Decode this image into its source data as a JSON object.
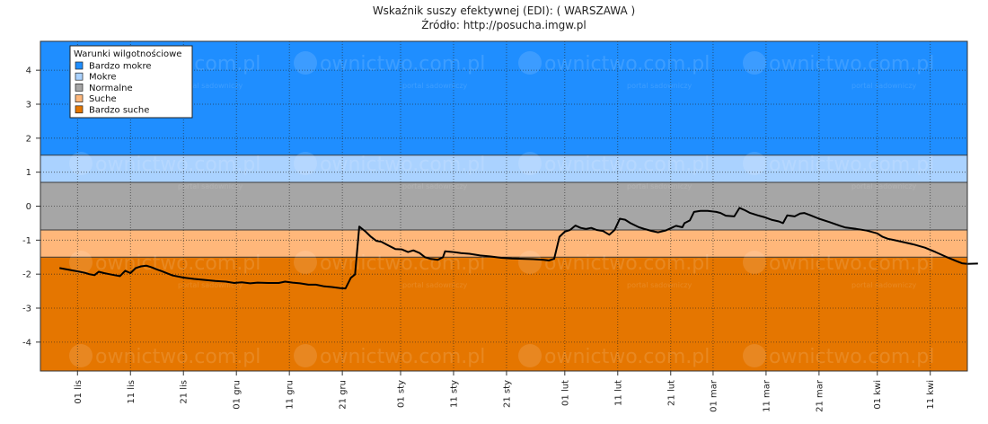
{
  "chart_data": {
    "type": "line",
    "title": "Wskaźnik suszy efektywnej (EDI): ( WARSZAWA )",
    "subtitle": "Źródło: http://posucha.imgw.pl",
    "ylim": [
      -4.85,
      4.85
    ],
    "y_ticks": [
      -4,
      -3,
      -2,
      -1,
      0,
      1,
      2,
      3,
      4
    ],
    "x_ticks": [
      {
        "day": 0,
        "label": "01 lis"
      },
      {
        "day": 10,
        "label": "11 lis"
      },
      {
        "day": 20,
        "label": "21 lis"
      },
      {
        "day": 30,
        "label": "01 gru"
      },
      {
        "day": 40,
        "label": "11 gru"
      },
      {
        "day": 50,
        "label": "21 gru"
      },
      {
        "day": 61,
        "label": "01 sty"
      },
      {
        "day": 71,
        "label": "11 sty"
      },
      {
        "day": 81,
        "label": "21 sty"
      },
      {
        "day": 92,
        "label": "01 lut"
      },
      {
        "day": 102,
        "label": "11 lut"
      },
      {
        "day": 112,
        "label": "21 lut"
      },
      {
        "day": 120,
        "label": "01 mar"
      },
      {
        "day": 130,
        "label": "11 mar"
      },
      {
        "day": 140,
        "label": "21 mar"
      },
      {
        "day": 151,
        "label": "01 kwi"
      },
      {
        "day": 161,
        "label": "11 kwi"
      }
    ],
    "xlim": [
      -7,
      168
    ],
    "bands": [
      {
        "name": "Bardzo mokre",
        "from": 1.5,
        "to": 4.85,
        "color": "#1f8eff"
      },
      {
        "name": "Mokre",
        "from": 0.7,
        "to": 1.5,
        "color": "#aad2ff"
      },
      {
        "name": "Normalne",
        "from": -0.7,
        "to": 0.7,
        "color": "#a6a6a6"
      },
      {
        "name": "Suche",
        "from": -1.5,
        "to": -0.7,
        "color": "#ffb77a"
      },
      {
        "name": "Bardzo suche",
        "from": -4.85,
        "to": -1.5,
        "color": "#e57600"
      }
    ],
    "legend": {
      "title": "Warunki wilgotnościowe",
      "position": "top-left",
      "items": [
        {
          "label": "Bardzo mokre",
          "color": "#1f8eff"
        },
        {
          "label": "Mokre",
          "color": "#aad2ff"
        },
        {
          "label": "Normalne",
          "color": "#a6a6a6"
        },
        {
          "label": "Suche",
          "color": "#ffb77a"
        },
        {
          "label": "Bardzo suche",
          "color": "#e57600"
        }
      ]
    },
    "grid": true,
    "series": [
      {
        "color": "#000000",
        "points": [
          [
            -3.4,
            -1.82
          ],
          [
            0.4,
            -1.93
          ],
          [
            1.4,
            -1.96
          ],
          [
            2.2,
            -2.0
          ],
          [
            3.2,
            -2.03
          ],
          [
            4.0,
            -1.93
          ],
          [
            5.0,
            -1.97
          ],
          [
            6.0,
            -2.0
          ],
          [
            7.0,
            -2.03
          ],
          [
            8.0,
            -2.06
          ],
          [
            9.0,
            -1.9
          ],
          [
            10.0,
            -1.97
          ],
          [
            11.0,
            -1.82
          ],
          [
            12.0,
            -1.77
          ],
          [
            13.0,
            -1.75
          ],
          [
            14.0,
            -1.8
          ],
          [
            15.0,
            -1.86
          ],
          [
            16.0,
            -1.92
          ],
          [
            17.0,
            -1.98
          ],
          [
            18.0,
            -2.04
          ],
          [
            20.0,
            -2.1
          ],
          [
            22.0,
            -2.14
          ],
          [
            24.0,
            -2.17
          ],
          [
            26.0,
            -2.2
          ],
          [
            28.0,
            -2.22
          ],
          [
            29.6,
            -2.26
          ],
          [
            31.0,
            -2.24
          ],
          [
            32.6,
            -2.27
          ],
          [
            34.0,
            -2.25
          ],
          [
            36.0,
            -2.26
          ],
          [
            38.0,
            -2.26
          ],
          [
            39.2,
            -2.22
          ],
          [
            40.6,
            -2.25
          ],
          [
            42.0,
            -2.27
          ],
          [
            43.6,
            -2.31
          ],
          [
            45.0,
            -2.31
          ],
          [
            46.6,
            -2.36
          ],
          [
            48.0,
            -2.38
          ],
          [
            49.6,
            -2.41
          ],
          [
            50.6,
            -2.42
          ],
          [
            51.6,
            -2.11
          ],
          [
            52.4,
            -2.01
          ],
          [
            53.2,
            -0.6
          ],
          [
            54.4,
            -0.75
          ],
          [
            55.4,
            -0.9
          ],
          [
            56.4,
            -1.02
          ],
          [
            57.4,
            -1.05
          ],
          [
            58.6,
            -1.15
          ],
          [
            60.0,
            -1.26
          ],
          [
            61.2,
            -1.27
          ],
          [
            62.4,
            -1.35
          ],
          [
            63.4,
            -1.3
          ],
          [
            64.6,
            -1.38
          ],
          [
            65.6,
            -1.5
          ],
          [
            66.6,
            -1.55
          ],
          [
            68.0,
            -1.58
          ],
          [
            69.0,
            -1.5
          ],
          [
            69.4,
            -1.33
          ],
          [
            71.0,
            -1.35
          ],
          [
            72.4,
            -1.38
          ],
          [
            74.0,
            -1.4
          ],
          [
            76.0,
            -1.45
          ],
          [
            78.0,
            -1.48
          ],
          [
            80.0,
            -1.52
          ],
          [
            82.0,
            -1.54
          ],
          [
            84.0,
            -1.55
          ],
          [
            86.0,
            -1.56
          ],
          [
            88.0,
            -1.58
          ],
          [
            89.0,
            -1.6
          ],
          [
            90.0,
            -1.55
          ],
          [
            91.0,
            -0.9
          ],
          [
            92.0,
            -0.75
          ],
          [
            93.0,
            -0.7
          ],
          [
            94.0,
            -0.57
          ],
          [
            95.0,
            -0.64
          ],
          [
            96.0,
            -0.67
          ],
          [
            97.0,
            -0.64
          ],
          [
            98.0,
            -0.7
          ],
          [
            99.2,
            -0.73
          ],
          [
            100.4,
            -0.84
          ],
          [
            101.4,
            -0.7
          ],
          [
            102.4,
            -0.37
          ],
          [
            103.4,
            -0.4
          ],
          [
            104.4,
            -0.5
          ],
          [
            106.0,
            -0.62
          ],
          [
            107.0,
            -0.67
          ],
          [
            108.4,
            -0.73
          ],
          [
            109.6,
            -0.77
          ],
          [
            111.0,
            -0.72
          ],
          [
            112.0,
            -0.65
          ],
          [
            113.0,
            -0.58
          ],
          [
            114.2,
            -0.62
          ],
          [
            114.6,
            -0.5
          ],
          [
            115.6,
            -0.42
          ],
          [
            116.4,
            -0.17
          ],
          [
            117.6,
            -0.14
          ],
          [
            119.0,
            -0.14
          ],
          [
            120.6,
            -0.17
          ],
          [
            121.4,
            -0.2
          ],
          [
            122.4,
            -0.28
          ],
          [
            124.0,
            -0.3
          ],
          [
            125.0,
            -0.05
          ],
          [
            126.0,
            -0.12
          ],
          [
            127.0,
            -0.2
          ],
          [
            128.4,
            -0.27
          ],
          [
            129.6,
            -0.32
          ],
          [
            131.0,
            -0.4
          ],
          [
            132.4,
            -0.45
          ],
          [
            133.2,
            -0.5
          ],
          [
            134.0,
            -0.27
          ],
          [
            135.4,
            -0.3
          ],
          [
            136.4,
            -0.22
          ],
          [
            137.2,
            -0.2
          ],
          [
            138.4,
            -0.27
          ],
          [
            140.0,
            -0.37
          ],
          [
            142.0,
            -0.47
          ],
          [
            144.0,
            -0.58
          ],
          [
            145.0,
            -0.63
          ],
          [
            147.0,
            -0.67
          ],
          [
            149.0,
            -0.72
          ],
          [
            151.0,
            -0.8
          ],
          [
            152.0,
            -0.9
          ],
          [
            153.0,
            -0.96
          ],
          [
            154.0,
            -0.99
          ],
          [
            156.0,
            -1.06
          ],
          [
            158.0,
            -1.13
          ],
          [
            160.0,
            -1.22
          ],
          [
            162.0,
            -1.35
          ],
          [
            164.0,
            -1.49
          ],
          [
            166.0,
            -1.62
          ],
          [
            167.0,
            -1.68
          ],
          [
            168.0,
            -1.7
          ],
          [
            170.0,
            -1.69
          ]
        ]
      }
    ]
  },
  "watermark": {
    "text": "ownictwo.com.pl",
    "subtext": "portal sadowniczy"
  }
}
